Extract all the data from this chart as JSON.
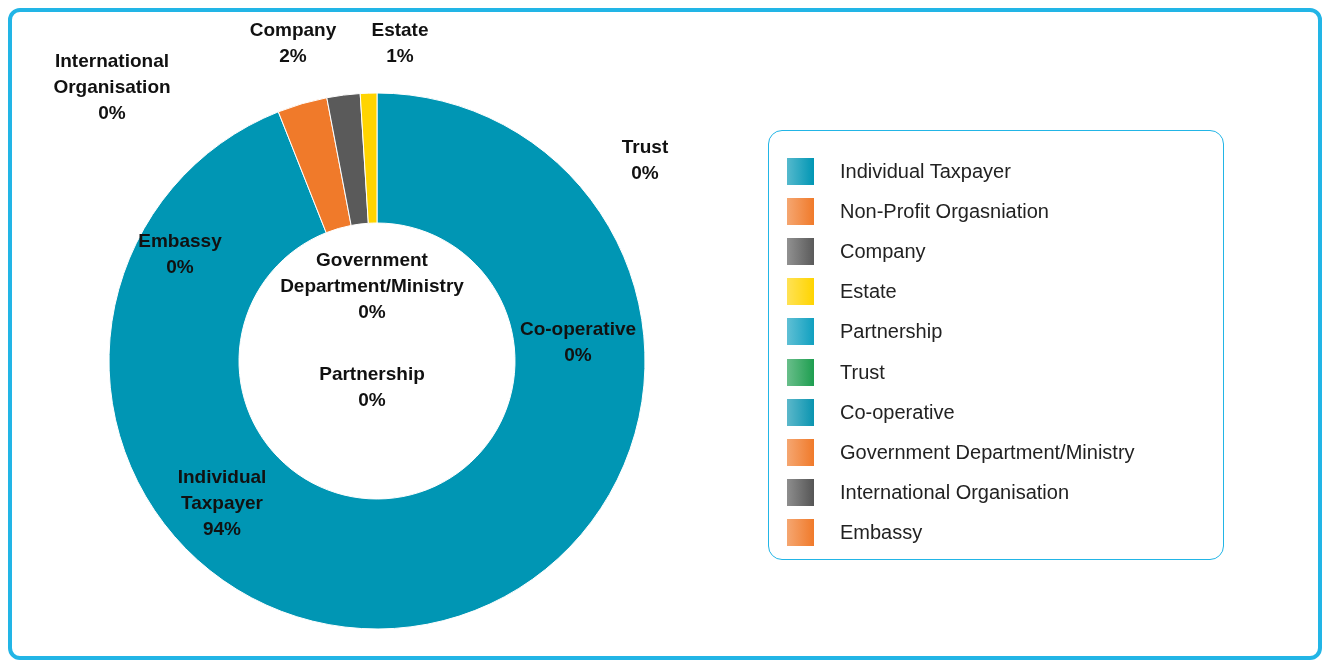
{
  "chart_data": {
    "type": "donut",
    "categories": [
      "Individual Taxpayer",
      "Non-Profit Orgasniation",
      "Company",
      "Estate",
      "Partnership",
      "Trust",
      "Co-operative",
      "Government Department/Ministry",
      "International Organisation",
      "Embassy"
    ],
    "values": [
      94,
      3,
      2,
      1,
      0,
      0,
      0,
      0,
      0,
      0
    ],
    "colors": [
      "#0096b4",
      "#f07a2a",
      "#5a5a5a",
      "#ffd400",
      "#10a0c0",
      "#1e9e50",
      "#0a94b0",
      "#f07a2a",
      "#555555",
      "#f07a2a"
    ],
    "value_labels": [
      "94%",
      null,
      "2%",
      "1%",
      "0%",
      "0%",
      "0%",
      "0%",
      "0%",
      "0%"
    ],
    "legend": "right"
  }
}
